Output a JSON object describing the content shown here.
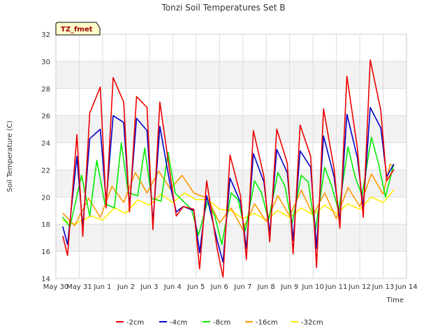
{
  "chart_data": {
    "type": "line",
    "title": "Tonzi Soil Temperatures Set B",
    "xlabel": "Time",
    "ylabel": "Soil Temperature (C)",
    "ylim": [
      14,
      32
    ],
    "yticks": [
      14,
      16,
      18,
      20,
      22,
      24,
      26,
      28,
      30,
      32
    ],
    "xlim": [
      0,
      15
    ],
    "xtick_labels": [
      "May 30",
      "May 31",
      "Jun 1",
      "Jun 2",
      "Jun 3",
      "Jun 4",
      "Jun 5",
      "Jun 6",
      "Jun 7",
      "Jun 8",
      "Jun 9",
      "Jun 10",
      "Jun 11",
      "Jun 12",
      "Jun 13",
      "Jun 14"
    ],
    "grid": true,
    "legend_position": "bottom",
    "tag_label": "TZ_fmet",
    "x_days_since": "May 30",
    "series": [
      {
        "name": "-2cm",
        "color": "#ee0000",
        "x": [
          0.3,
          0.5,
          0.9,
          1.15,
          1.45,
          1.9,
          2.15,
          2.45,
          2.9,
          3.15,
          3.45,
          3.9,
          4.15,
          4.45,
          4.9,
          5.15,
          5.45,
          5.9,
          6.15,
          6.45,
          6.9,
          7.15,
          7.45,
          7.9,
          8.15,
          8.45,
          8.9,
          9.15,
          9.45,
          9.9,
          10.15,
          10.45,
          10.9,
          11.15,
          11.45,
          11.9,
          12.15,
          12.45,
          12.9,
          13.15,
          13.45,
          13.9,
          14.15,
          14.45
        ],
        "y": [
          17.1,
          15.7,
          24.6,
          17.1,
          26.2,
          28.1,
          19.2,
          28.8,
          27.0,
          18.9,
          27.4,
          26.6,
          17.6,
          27.0,
          21.5,
          18.6,
          19.3,
          19.1,
          14.7,
          21.2,
          16.2,
          14.1,
          23.1,
          20.1,
          15.4,
          24.9,
          21.5,
          16.7,
          25.0,
          22.5,
          15.8,
          25.3,
          23.0,
          14.8,
          26.5,
          22.1,
          17.7,
          28.9,
          23.6,
          18.5,
          30.1,
          26.4,
          21.2,
          22.0
        ]
      },
      {
        "name": "-4cm",
        "color": "#0000cc",
        "x": [
          0.3,
          0.5,
          0.9,
          1.15,
          1.45,
          1.9,
          2.15,
          2.45,
          2.9,
          3.15,
          3.45,
          3.9,
          4.15,
          4.45,
          4.9,
          5.15,
          5.45,
          5.9,
          6.15,
          6.45,
          6.9,
          7.15,
          7.45,
          7.9,
          8.15,
          8.45,
          8.9,
          9.15,
          9.45,
          9.9,
          10.15,
          10.45,
          10.9,
          11.15,
          11.45,
          11.9,
          12.15,
          12.45,
          12.9,
          13.15,
          13.45,
          13.9,
          14.15,
          14.45
        ],
        "y": [
          17.8,
          16.5,
          23.0,
          17.8,
          24.3,
          25.0,
          19.6,
          26.0,
          25.5,
          19.3,
          25.8,
          24.9,
          18.1,
          25.2,
          20.8,
          18.9,
          19.3,
          19.0,
          15.9,
          20.1,
          16.8,
          15.2,
          21.4,
          19.6,
          16.2,
          23.2,
          21.1,
          17.3,
          23.5,
          21.8,
          16.8,
          23.4,
          22.2,
          16.2,
          24.5,
          21.5,
          18.3,
          26.1,
          22.9,
          19.2,
          26.6,
          25.1,
          21.5,
          22.4
        ]
      },
      {
        "name": "-8cm",
        "color": "#00ee00",
        "x": [
          0.3,
          0.6,
          1.1,
          1.45,
          1.75,
          2.1,
          2.5,
          2.8,
          3.1,
          3.5,
          3.8,
          4.1,
          4.5,
          4.8,
          5.1,
          5.5,
          5.8,
          6.1,
          6.5,
          6.8,
          7.1,
          7.5,
          7.8,
          8.1,
          8.5,
          8.8,
          9.1,
          9.5,
          9.8,
          10.1,
          10.5,
          10.8,
          11.1,
          11.5,
          11.8,
          12.1,
          12.5,
          12.8,
          13.1,
          13.5,
          13.8,
          14.1,
          14.45
        ],
        "y": [
          18.5,
          17.8,
          21.6,
          18.6,
          22.7,
          19.5,
          19.2,
          24.0,
          20.3,
          20.1,
          23.6,
          19.9,
          19.7,
          23.3,
          20.3,
          19.6,
          19.1,
          17.2,
          19.7,
          18.6,
          16.5,
          20.3,
          19.8,
          17.5,
          21.2,
          20.3,
          18.3,
          21.8,
          20.8,
          18.0,
          21.6,
          21.1,
          17.5,
          22.2,
          20.8,
          19.0,
          23.7,
          21.5,
          20.1,
          24.4,
          22.5,
          20.0,
          22.4
        ]
      },
      {
        "name": "-16cm",
        "color": "#ff9900",
        "x": [
          0.3,
          0.8,
          1.4,
          1.9,
          2.4,
          2.9,
          3.4,
          3.9,
          4.4,
          4.9,
          5.4,
          5.9,
          6.5,
          7.0,
          7.5,
          8.0,
          8.5,
          9.0,
          9.5,
          10.0,
          10.5,
          11.0,
          11.5,
          12.0,
          12.5,
          13.0,
          13.5,
          14.0,
          14.3,
          14.45
        ],
        "y": [
          18.8,
          17.9,
          19.9,
          18.5,
          20.8,
          19.6,
          21.8,
          20.3,
          21.9,
          20.6,
          21.6,
          20.3,
          19.9,
          18.1,
          19.2,
          17.6,
          19.5,
          18.2,
          20.1,
          18.6,
          20.5,
          18.7,
          20.3,
          18.4,
          20.7,
          19.3,
          21.7,
          20.2,
          22.4,
          22.3
        ]
      },
      {
        "name": "-32cm",
        "color": "#ffee00",
        "x": [
          0.3,
          0.8,
          1.5,
          2.0,
          2.5,
          3.0,
          3.5,
          4.0,
          4.5,
          5.0,
          5.5,
          6.0,
          6.5,
          7.0,
          7.5,
          8.0,
          8.5,
          9.0,
          9.5,
          10.0,
          10.5,
          11.0,
          11.5,
          12.0,
          12.5,
          13.0,
          13.5,
          14.0,
          14.45
        ],
        "y": [
          18.3,
          18.0,
          18.6,
          18.3,
          19.2,
          18.8,
          19.8,
          19.4,
          20.2,
          19.6,
          20.3,
          19.8,
          19.8,
          19.1,
          19.0,
          18.4,
          18.8,
          18.3,
          19.0,
          18.5,
          19.2,
          18.7,
          19.4,
          18.8,
          19.5,
          19.1,
          20.0,
          19.6,
          20.5
        ]
      }
    ]
  }
}
